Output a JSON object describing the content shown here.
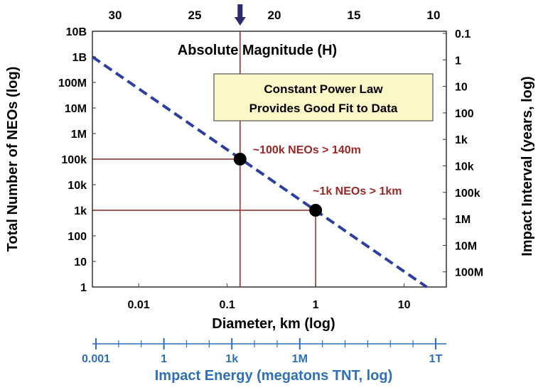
{
  "chart_data": {
    "type": "line",
    "title": "",
    "top_axis_label": "Absolute Magnitude (H)",
    "xlabel": "Diameter, km (log)",
    "ylabel": "Total Number of NEOs (log)",
    "right_ylabel": "Impact Interval (years, log)",
    "energy_axis_label": "Impact Energy (megatons TNT, log)",
    "x_scale": "log",
    "y_scale": "log",
    "xlim": [
      0.003,
      30
    ],
    "ylim": [
      1,
      10000000000
    ],
    "x_ticks": [
      {
        "value": 0.01,
        "label": "0.01"
      },
      {
        "value": 0.1,
        "label": "0.1"
      },
      {
        "value": 1,
        "label": "1"
      },
      {
        "value": 10,
        "label": "10"
      }
    ],
    "y_ticks": [
      {
        "value": 10000000000,
        "label": "10B"
      },
      {
        "value": 1000000000,
        "label": "1B"
      },
      {
        "value": 100000000,
        "label": "100M"
      },
      {
        "value": 10000000,
        "label": "10M"
      },
      {
        "value": 1000000,
        "label": "1M"
      },
      {
        "value": 100000,
        "label": "100k"
      },
      {
        "value": 10000,
        "label": "10k"
      },
      {
        "value": 1000,
        "label": "1k"
      },
      {
        "value": 100,
        "label": "100"
      },
      {
        "value": 10,
        "label": "10"
      },
      {
        "value": 1,
        "label": "1"
      }
    ],
    "top_ticks": [
      {
        "value": 30,
        "label": "30"
      },
      {
        "value": 25,
        "label": "25"
      },
      {
        "value": 20,
        "label": "20"
      },
      {
        "value": 15,
        "label": "15"
      },
      {
        "value": 10,
        "label": "10"
      }
    ],
    "right_ticks": [
      {
        "value": 0.1,
        "label": "0.1"
      },
      {
        "value": 1,
        "label": "1"
      },
      {
        "value": 10,
        "label": "10"
      },
      {
        "value": 100,
        "label": "100"
      },
      {
        "value": 1000,
        "label": "1k"
      },
      {
        "value": 10000,
        "label": "10k"
      },
      {
        "value": 100000,
        "label": "100k"
      },
      {
        "value": 1000000,
        "label": "1M"
      },
      {
        "value": 10000000,
        "label": "10M"
      },
      {
        "value": 100000000,
        "label": "100M"
      }
    ],
    "energy_ticks": [
      {
        "value": 0.001,
        "label": "0.001"
      },
      {
        "value": 1,
        "label": "1"
      },
      {
        "value": 1000,
        "label": "1k"
      },
      {
        "value": 1000000,
        "label": "1M"
      },
      {
        "value": 1000000000000,
        "label": "1T"
      }
    ],
    "series": [
      {
        "style": "dashed",
        "color": "#2b3fa3",
        "points": [
          {
            "x": 0.003,
            "y": 1000000000
          },
          {
            "x": 18,
            "y": 1
          }
        ]
      }
    ],
    "highlight_points": [
      {
        "x": 0.14,
        "y": 100000,
        "label": "~100k NEOs > 140m"
      },
      {
        "x": 1,
        "y": 1000,
        "label": "~1k NEOs > 1km"
      }
    ],
    "marker_arrow": {
      "x": 0.14
    },
    "annotation_box": {
      "lines": [
        "Constant Power Law",
        "Provides Good Fit to Data"
      ]
    },
    "colors": {
      "axis_text": "#000000",
      "energy_text": "#2e6fba",
      "guide_line": "#9b2626",
      "point_label": "#9b2626",
      "box_fill": "#fbf7c6",
      "arrow": "#2d2a6e",
      "fit_line": "#2b3fa3"
    }
  }
}
